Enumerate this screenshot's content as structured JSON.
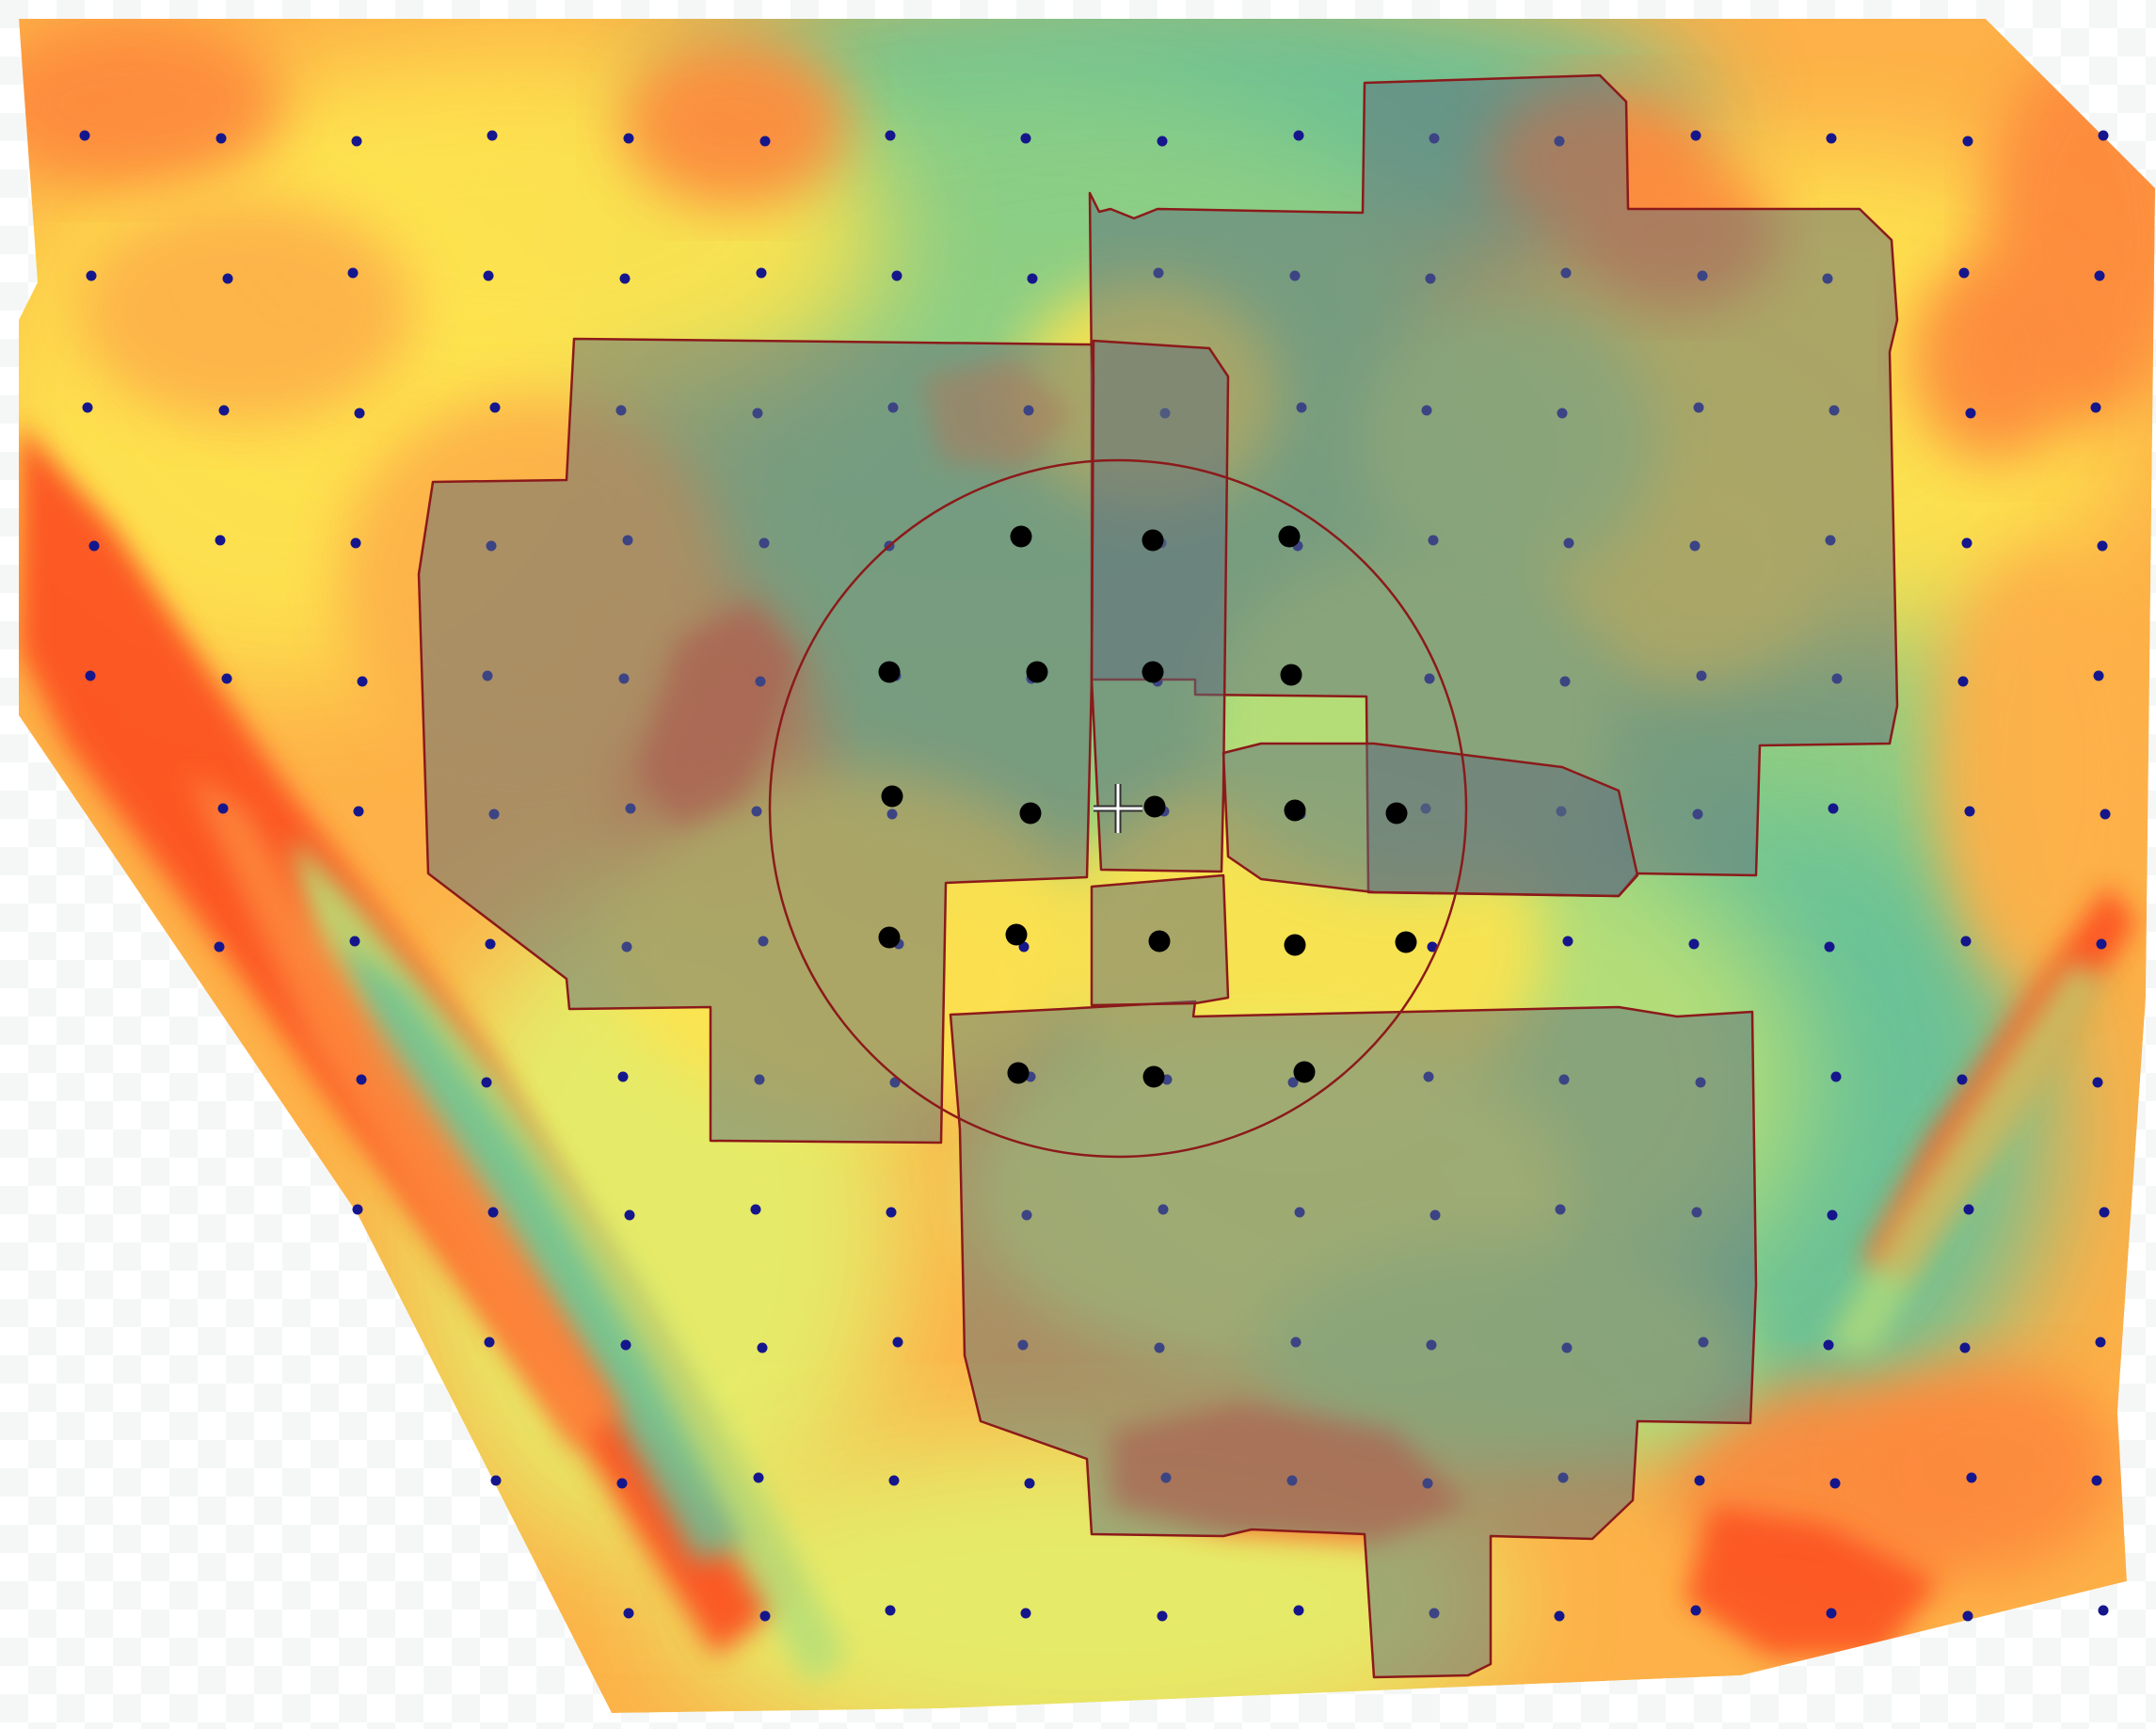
{
  "colors": {
    "background": "#ffffff",
    "transparency_checker": "#eef2f2",
    "ramp": [
      "#fc5323",
      "#fd8a3c",
      "#fdb148",
      "#fde34f",
      "#e4ee6a",
      "#b8df77",
      "#8ccf85",
      "#66c199"
    ],
    "zone_fill": "#5f6f7d",
    "zone_stroke": "#8b1a1a",
    "buffer_stroke": "#8b1a1a",
    "sample_point": "#16168c",
    "selected_point": "#000000",
    "cursor": "#ffffff"
  },
  "icons": {
    "cursor": "crosshair-cursor-icon",
    "sample_point": "sample-point-icon",
    "selected_point": "selected-point-icon"
  },
  "layers": [
    "interpolated-surface",
    "sample-points",
    "management-zones",
    "selection-buffer",
    "selected-points"
  ]
}
